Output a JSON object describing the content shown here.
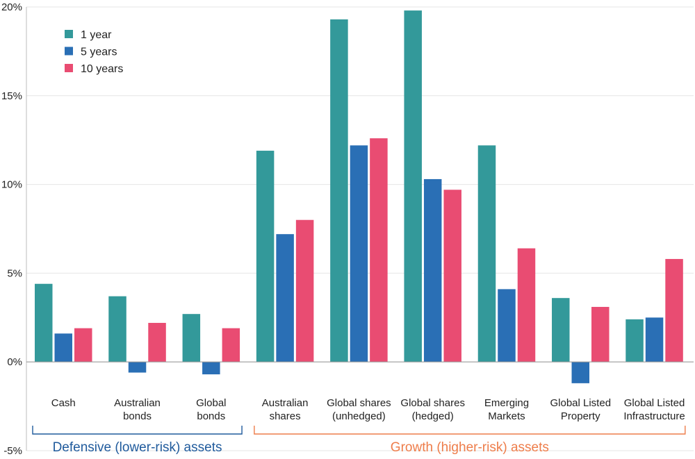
{
  "chart_data": {
    "type": "bar",
    "title": "",
    "xlabel": "",
    "ylabel": "",
    "ylim": [
      -5,
      20
    ],
    "yticks": [
      -5,
      0,
      5,
      10,
      15,
      20
    ],
    "ytick_labels": [
      "-5%",
      "0%",
      "5%",
      "10%",
      "15%",
      "20%"
    ],
    "grid": true,
    "legend_position": "top-left",
    "categories": [
      [
        "Cash"
      ],
      [
        "Australian",
        "bonds"
      ],
      [
        "Global",
        "bonds"
      ],
      [
        "Australian",
        "shares"
      ],
      [
        "Global shares",
        "(unhedged)"
      ],
      [
        "Global shares",
        "(hedged)"
      ],
      [
        "Emerging",
        "Markets"
      ],
      [
        "Global Listed",
        "Property"
      ],
      [
        "Global Listed",
        "Infrastructure"
      ]
    ],
    "series": [
      {
        "name": "1 year",
        "color": "#33999a",
        "values": [
          4.4,
          3.7,
          2.7,
          11.9,
          19.3,
          19.8,
          12.2,
          3.6,
          2.4
        ]
      },
      {
        "name": "5 years",
        "color": "#2a6fb5",
        "values": [
          1.6,
          -0.6,
          -0.7,
          7.2,
          12.2,
          10.3,
          4.1,
          -1.2,
          2.5
        ]
      },
      {
        "name": "10 years",
        "color": "#e94c72",
        "values": [
          1.9,
          2.2,
          1.9,
          8.0,
          12.6,
          9.7,
          6.4,
          3.1,
          5.8
        ]
      }
    ],
    "groups": [
      {
        "label": "Defensive (lower-risk) assets",
        "color": "#1f5a9c",
        "category_range": [
          0,
          2
        ]
      },
      {
        "label": "Growth (higher-risk) assets",
        "color": "#ee7d4a",
        "category_range": [
          3,
          8
        ]
      }
    ]
  }
}
